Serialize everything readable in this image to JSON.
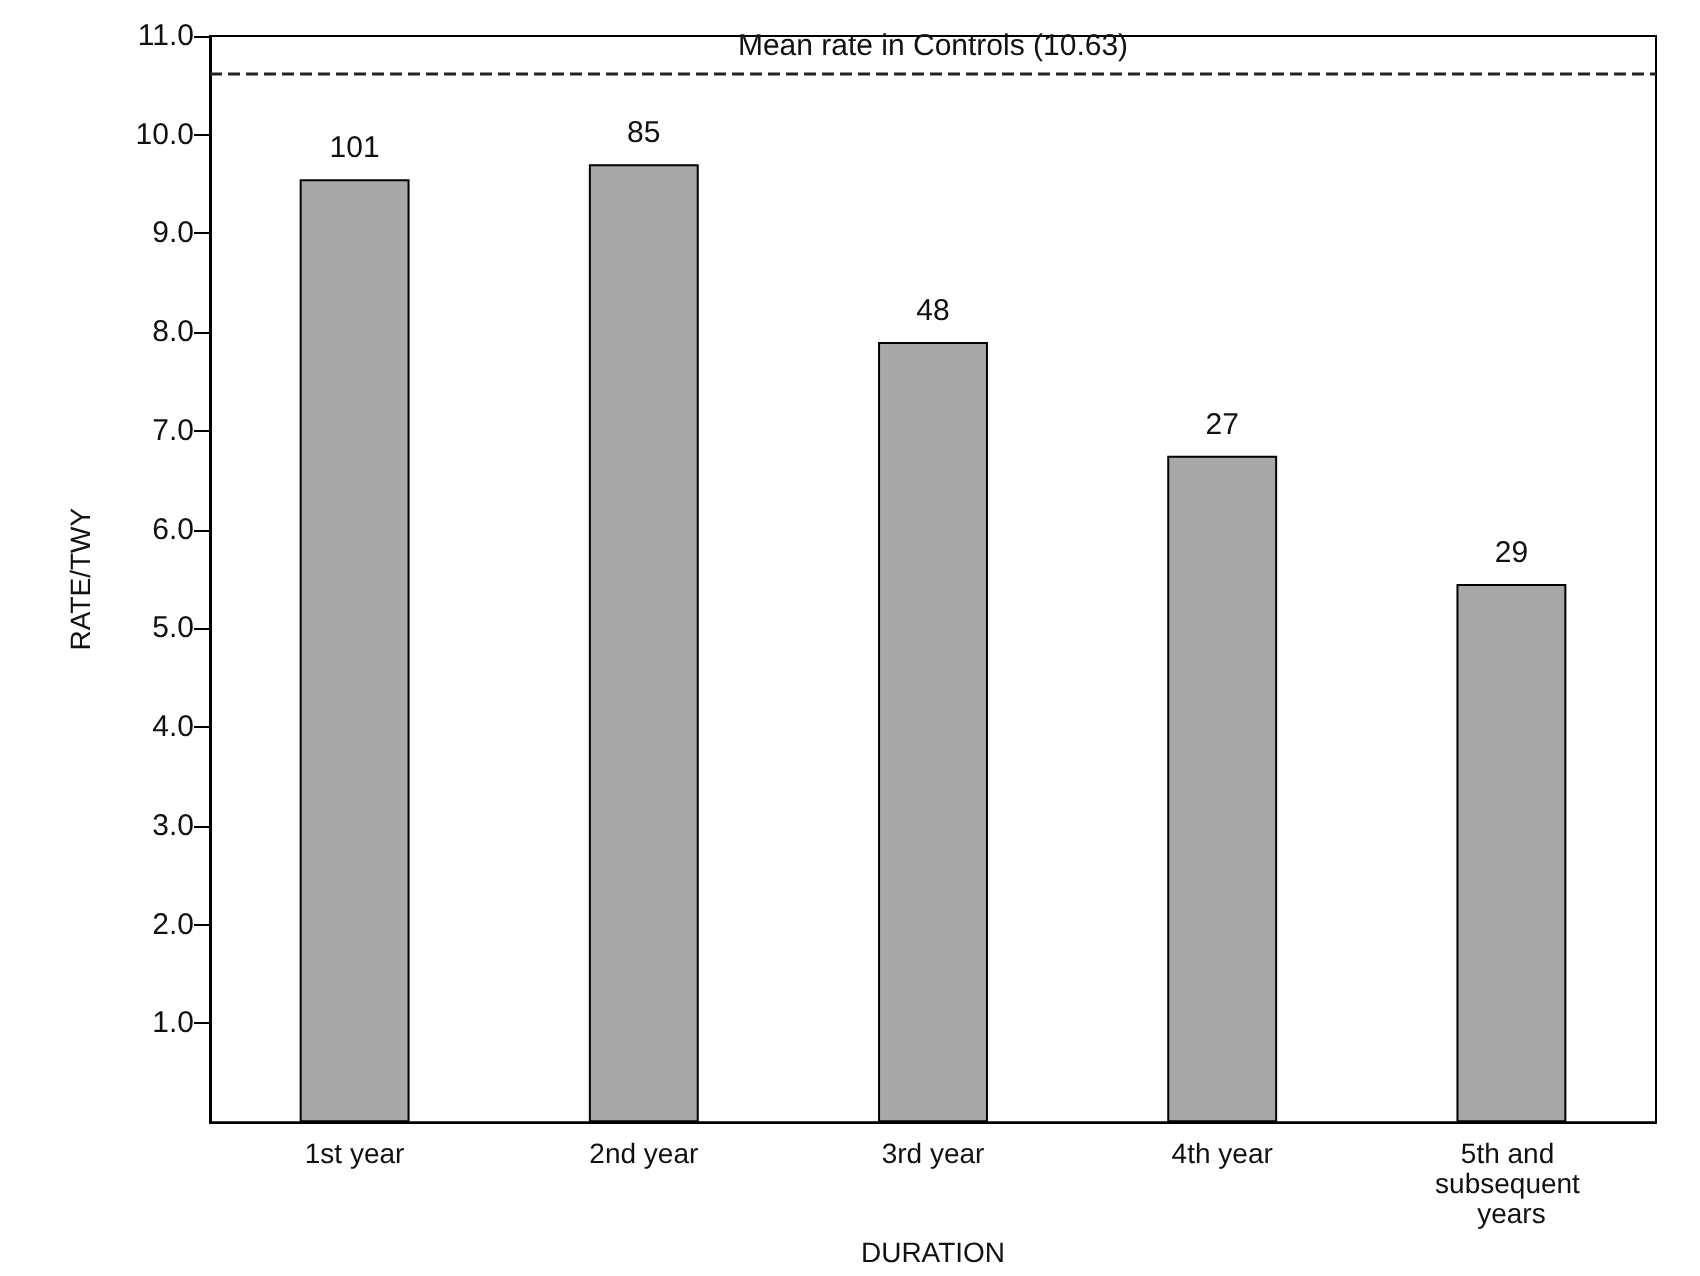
{
  "chart_data": {
    "type": "bar",
    "xlabel": "DURATION",
    "ylabel": "RATE/TWY",
    "categories": [
      "1st year",
      "2nd year",
      "3rd year",
      "4th year",
      "5th and subsequent years"
    ],
    "values": [
      9.55,
      9.7,
      7.9,
      6.75,
      5.45
    ],
    "annotations": [
      {
        "text": "101",
        "x": "1st year",
        "y": 9.55
      },
      {
        "text": "85",
        "x": "2nd year",
        "y": 9.7
      },
      {
        "text": "48",
        "x": "3rd year",
        "y": 7.9
      },
      {
        "text": "27",
        "x": "4th year",
        "y": 6.75
      },
      {
        "text": "29",
        "x": "5th and subsequent years",
        "y": 5.45
      }
    ],
    "color": "#a8a8a8",
    "ylim": [
      0,
      11
    ],
    "yticks": [
      {
        "value": 1,
        "label": "1.0"
      },
      {
        "value": 2,
        "label": "2.0"
      },
      {
        "value": 3,
        "label": "3.0"
      },
      {
        "value": 4,
        "label": "4.0"
      },
      {
        "value": 5,
        "label": "5.0"
      },
      {
        "value": 6,
        "label": "6.0"
      },
      {
        "value": 7,
        "label": "7.0"
      },
      {
        "value": 8,
        "label": "8.0"
      },
      {
        "value": 9,
        "label": "9.0"
      },
      {
        "value": 10,
        "label": "10.0"
      },
      {
        "value": 11,
        "label": "11.0"
      }
    ],
    "ref_lines": [
      {
        "axis": "y",
        "value": 10.63,
        "label": "Mean rate in Controls (10.63)",
        "color": "#222222",
        "line_style": "dashed"
      }
    ],
    "grid": false
  }
}
